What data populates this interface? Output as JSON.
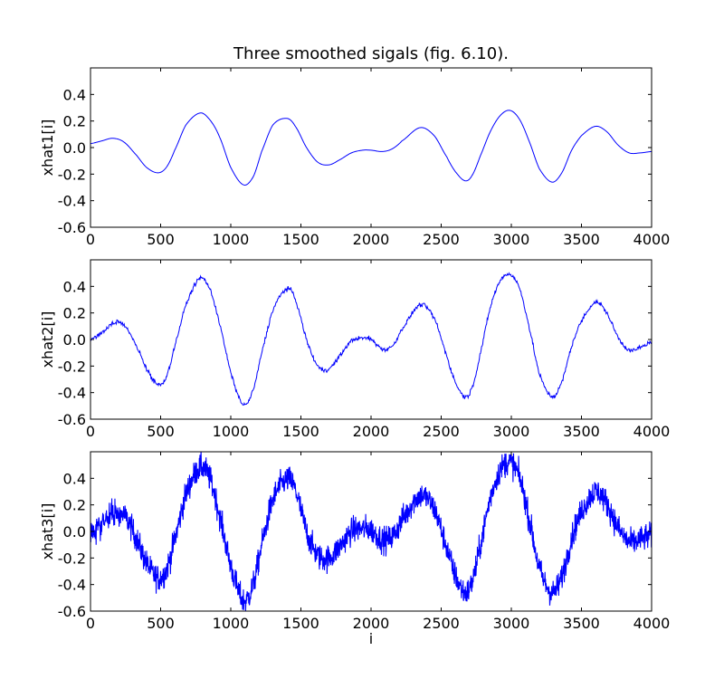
{
  "chart_data": [
    {
      "type": "line",
      "title": "Three smoothed sigals (fig. 6.10).",
      "xlabel": "",
      "ylabel": "xhat1[i]",
      "xlim": [
        0,
        4000
      ],
      "ylim": [
        -0.6,
        0.6
      ],
      "xticks": [
        "0",
        "500",
        "1000",
        "1500",
        "2000",
        "2500",
        "3000",
        "3500",
        "4000"
      ],
      "yticks": [
        "-0.6",
        "-0.4",
        "-0.2",
        "0.0",
        "0.2",
        "0.4"
      ],
      "grid": false,
      "noise": 0,
      "series": [
        {
          "color": "#0000ff",
          "x": [
            0,
            80,
            160,
            240,
            330,
            400,
            480,
            540,
            600,
            680,
            780,
            850,
            920,
            1000,
            1090,
            1160,
            1220,
            1300,
            1400,
            1460,
            1540,
            1620,
            1700,
            1780,
            1860,
            1940,
            2000,
            2080,
            2150,
            2220,
            2350,
            2450,
            2540,
            2600,
            2670,
            2720,
            2780,
            2850,
            2920,
            2990,
            3060,
            3130,
            3200,
            3290,
            3360,
            3430,
            3500,
            3600,
            3680,
            3760,
            3840,
            3920,
            4000
          ],
          "y": [
            0.03,
            0.05,
            0.07,
            0.04,
            -0.06,
            -0.15,
            -0.19,
            -0.15,
            -0.02,
            0.17,
            0.26,
            0.21,
            0.08,
            -0.15,
            -0.28,
            -0.22,
            -0.03,
            0.17,
            0.22,
            0.16,
            0.0,
            -0.11,
            -0.13,
            -0.09,
            -0.04,
            -0.02,
            -0.02,
            -0.03,
            -0.01,
            0.05,
            0.15,
            0.09,
            -0.07,
            -0.18,
            -0.25,
            -0.21,
            -0.06,
            0.12,
            0.24,
            0.28,
            0.21,
            0.04,
            -0.16,
            -0.26,
            -0.19,
            -0.02,
            0.09,
            0.16,
            0.12,
            0.02,
            -0.04,
            -0.04,
            -0.03
          ]
        }
      ]
    },
    {
      "type": "line",
      "title": "",
      "xlabel": "",
      "ylabel": "xhat2[i]",
      "xlim": [
        0,
        4000
      ],
      "ylim": [
        -0.6,
        0.6
      ],
      "xticks": [
        "0",
        "500",
        "1000",
        "1500",
        "2000",
        "2500",
        "3000",
        "3500",
        "4000"
      ],
      "yticks": [
        "-0.6",
        "-0.4",
        "-0.2",
        "0.0",
        "0.2",
        "0.4"
      ],
      "grid": false,
      "noise": 0.008,
      "series": [
        {
          "color": "#0000ff",
          "x": [
            0,
            80,
            160,
            240,
            330,
            400,
            480,
            540,
            600,
            680,
            780,
            850,
            920,
            1000,
            1090,
            1160,
            1220,
            1300,
            1400,
            1460,
            1540,
            1620,
            1700,
            1780,
            1860,
            1940,
            2000,
            2080,
            2150,
            2220,
            2350,
            2450,
            2540,
            2600,
            2670,
            2720,
            2780,
            2850,
            2920,
            2990,
            3060,
            3130,
            3200,
            3290,
            3360,
            3430,
            3500,
            3600,
            3680,
            3760,
            3840,
            3920,
            4000
          ],
          "y": [
            0.0,
            0.05,
            0.12,
            0.11,
            -0.05,
            -0.22,
            -0.34,
            -0.28,
            -0.05,
            0.26,
            0.46,
            0.38,
            0.12,
            -0.25,
            -0.49,
            -0.38,
            -0.1,
            0.22,
            0.38,
            0.3,
            0.0,
            -0.2,
            -0.22,
            -0.12,
            -0.01,
            0.01,
            0.0,
            -0.07,
            -0.05,
            0.08,
            0.26,
            0.16,
            -0.12,
            -0.32,
            -0.43,
            -0.36,
            -0.1,
            0.24,
            0.44,
            0.49,
            0.38,
            0.08,
            -0.26,
            -0.43,
            -0.32,
            -0.05,
            0.14,
            0.28,
            0.2,
            0.02,
            -0.08,
            -0.06,
            -0.02
          ]
        }
      ]
    },
    {
      "type": "line",
      "title": "",
      "xlabel": "i",
      "ylabel": "xhat3[i]",
      "xlim": [
        0,
        4000
      ],
      "ylim": [
        -0.6,
        0.6
      ],
      "xticks": [
        "0",
        "500",
        "1000",
        "1500",
        "2000",
        "2500",
        "3000",
        "3500",
        "4000"
      ],
      "yticks": [
        "-0.6",
        "-0.4",
        "-0.2",
        "0.0",
        "0.2",
        "0.4"
      ],
      "grid": false,
      "noise": 0.09,
      "series": [
        {
          "color": "#0000ff",
          "x": [
            0,
            80,
            160,
            240,
            330,
            400,
            480,
            540,
            600,
            680,
            780,
            850,
            920,
            1000,
            1090,
            1160,
            1220,
            1300,
            1400,
            1460,
            1540,
            1620,
            1700,
            1780,
            1860,
            1940,
            2000,
            2080,
            2150,
            2220,
            2350,
            2450,
            2540,
            2600,
            2670,
            2720,
            2780,
            2850,
            2920,
            2990,
            3060,
            3130,
            3200,
            3290,
            3360,
            3430,
            3500,
            3600,
            3680,
            3760,
            3840,
            3920,
            4000
          ],
          "y": [
            0.0,
            0.06,
            0.13,
            0.12,
            -0.06,
            -0.24,
            -0.35,
            -0.29,
            -0.06,
            0.28,
            0.48,
            0.4,
            0.12,
            -0.26,
            -0.52,
            -0.4,
            -0.1,
            0.24,
            0.39,
            0.31,
            0.0,
            -0.18,
            -0.2,
            -0.11,
            0.0,
            0.02,
            0.01,
            -0.06,
            -0.04,
            0.09,
            0.27,
            0.17,
            -0.12,
            -0.33,
            -0.46,
            -0.38,
            -0.1,
            0.25,
            0.46,
            0.52,
            0.4,
            0.08,
            -0.28,
            -0.46,
            -0.34,
            -0.05,
            0.15,
            0.3,
            0.21,
            0.03,
            -0.08,
            -0.06,
            -0.03
          ]
        }
      ]
    }
  ]
}
